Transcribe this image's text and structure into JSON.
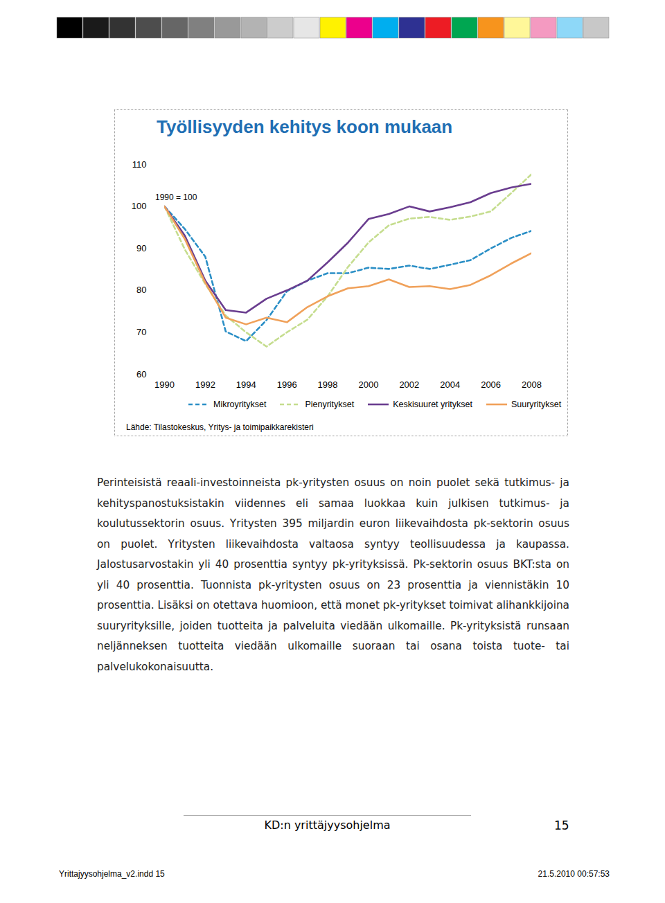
{
  "chart_data": {
    "type": "line",
    "title": "Työllisyyden kehitys koon mukaan",
    "annotation": "1990 = 100",
    "source": "Lähde: Tilastokeskus, Yritys- ja toimipaikkarekisteri",
    "x": [
      1990,
      1991,
      1992,
      1993,
      1994,
      1995,
      1996,
      1997,
      1998,
      1999,
      2000,
      2001,
      2002,
      2003,
      2004,
      2005,
      2006,
      2007,
      2008
    ],
    "series": [
      {
        "name": "Mikroyritykset",
        "color": "#2b8fc6",
        "line_style": "dashed",
        "values": [
          100,
          94.6,
          88,
          70.2,
          67.9,
          72.9,
          79.8,
          82.3,
          84.1,
          84.1,
          85.4,
          85.1,
          85.9,
          85.1,
          86.1,
          87.2,
          90,
          92.5,
          94.2
        ]
      },
      {
        "name": "Pienyritykset",
        "color": "#c5dd8e",
        "line_style": "dashed",
        "values": [
          100,
          89.7,
          81.5,
          74,
          70,
          66.6,
          70,
          73,
          78.6,
          85.6,
          91.4,
          95.5,
          97.1,
          97.5,
          96.8,
          97.6,
          98.8,
          103.2,
          107.7
        ]
      },
      {
        "name": "Keskisuuret yritykset",
        "color": "#6a3d8f",
        "line_style": "solid",
        "values": [
          100,
          93,
          82.3,
          75.3,
          74.7,
          78,
          80,
          82.3,
          86.7,
          91.4,
          97,
          98.2,
          100,
          98.8,
          99.8,
          101,
          103.2,
          104.5,
          105.4
        ]
      },
      {
        "name": "Suuryritykset",
        "color": "#f0a15a",
        "line_style": "solid",
        "values": [
          100,
          92.2,
          81.8,
          73.5,
          71.9,
          73.5,
          72.4,
          76,
          78.6,
          80.5,
          81,
          82.6,
          80.8,
          81,
          80.3,
          81.3,
          83.6,
          86.4,
          88.9
        ]
      }
    ],
    "xlim": [
      1990,
      2008
    ],
    "xticks": [
      1990,
      1992,
      1994,
      1996,
      1998,
      2000,
      2002,
      2004,
      2006,
      2008
    ],
    "ylim": [
      60,
      110
    ],
    "yticks": [
      60,
      70,
      80,
      90,
      100,
      110
    ],
    "grid": false,
    "legend": "bottom"
  },
  "document": {
    "paragraph": "Perinteisistä reaali-investoinneista pk-yritysten osuus on noin puolet sekä tutkimus- ja kehityspanostuksistakin viidennes eli samaa luokkaa kuin julkisen tutkimus- ja koulutussektorin osuus. Yritysten 395 miljardin euron liikevaihdosta pk-sektorin osuus on puolet. Yritysten liikevaihdosta valtaosa syntyy teollisuudessa ja kaupassa. Jalostusarvostakin yli 40 prosenttia syntyy pk-yrityksissä. Pk-sektorin osuus BKT:sta on yli 40 prosenttia. Tuonnista pk-yritysten osuus on 23 prosenttia ja viennistäkin 10 prosenttia. Lisäksi on otettava huomioon, että monet pk-yritykset toimivat alihankkijoina suuryrityksille, joiden tuotteita ja palveluita viedään ulkomaille. Pk-yrityksistä runsaan neljänneksen tuotteita viedään ulkomaille suoraan tai osana toista tuote- tai palvelukokonaisuutta.",
    "footer": {
      "title": "KD:n yrittäjyysohjelma",
      "page": "15"
    },
    "slug": {
      "file": "Yrittajyysohjelma_v2.indd 15",
      "date": "21.5.2010 00:57:53"
    }
  }
}
